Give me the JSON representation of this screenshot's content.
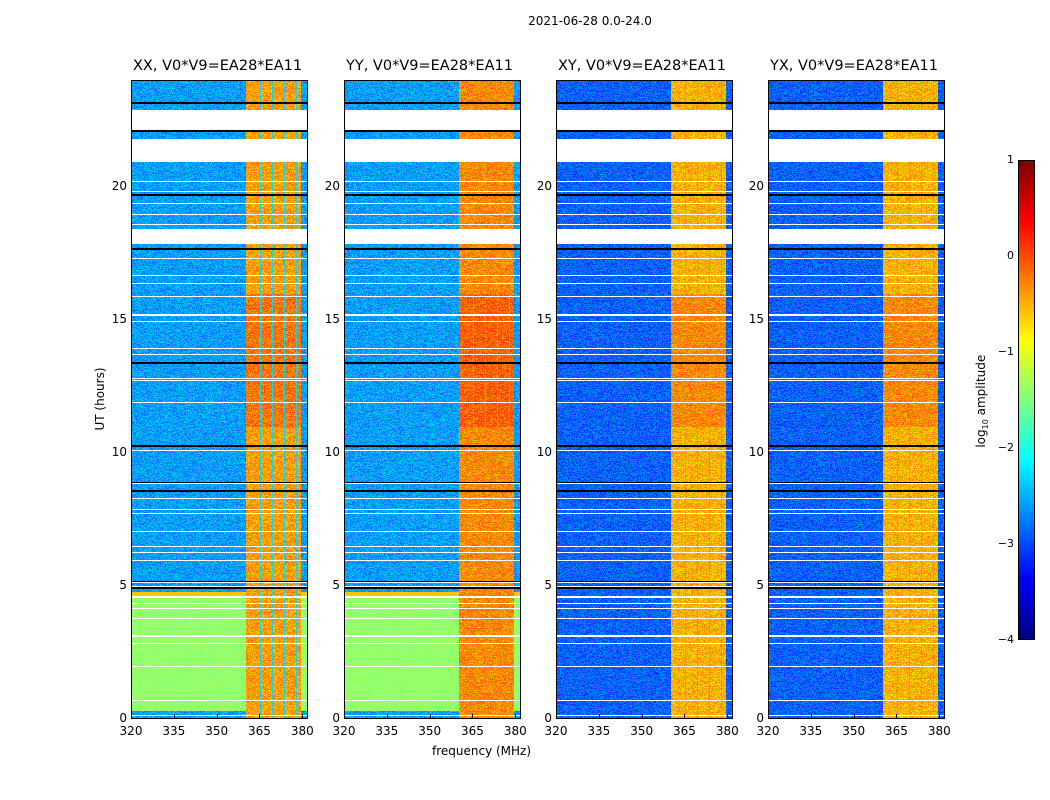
{
  "figure": {
    "suptitle": "2021-06-28 0.0-24.0",
    "xlabel": "frequency (MHz)",
    "ylabel": "UT (hours)",
    "colorbar_label_main": "log",
    "colorbar_label_sub": "10",
    "colorbar_label_rest": " amplitude"
  },
  "chart_data": {
    "type": "heatmap",
    "title": "2021-06-28 0.0-24.0",
    "xlabel": "frequency (MHz)",
    "ylabel": "UT (hours)",
    "xlim": [
      320,
      382
    ],
    "ylim": [
      0,
      24
    ],
    "xticks": [
      "320",
      "335",
      "350",
      "365",
      "380"
    ],
    "yticks": [
      "0",
      "5",
      "10",
      "15",
      "20"
    ],
    "colormap": "jet",
    "colorbar": {
      "label": "log10 amplitude",
      "range": [
        -4,
        1
      ],
      "ticks": [
        "1",
        "0",
        "−1",
        "−2",
        "−3",
        "−4"
      ]
    },
    "bright_band_mhz": [
      360.5,
      380
    ],
    "channel_gaps_mhz": [
      365.2,
      369.6,
      374.0,
      378.0
    ],
    "panels": [
      {
        "title": "XX, V0*V9=EA28*EA11",
        "polarization": "XX",
        "background_level": -2.6,
        "band_level": -0.4
      },
      {
        "title": "YY, V0*V9=EA28*EA11",
        "polarization": "YY",
        "background_level": -2.6,
        "band_level": -0.3
      },
      {
        "title": "XY, V0*V9=EA28*EA11",
        "polarization": "XY",
        "background_level": -2.9,
        "band_level": -0.5
      },
      {
        "title": "YX, V0*V9=EA28*EA11",
        "polarization": "YX",
        "background_level": -2.9,
        "band_level": -0.5
      }
    ],
    "flagged_hours": [
      [
        22.2,
        22.9
      ],
      [
        21.0,
        21.8
      ],
      [
        17.9,
        18.4
      ],
      [
        4.55,
        4.6
      ]
    ],
    "elevated_background_hours": [
      [
        0.3,
        4.6
      ]
    ]
  }
}
